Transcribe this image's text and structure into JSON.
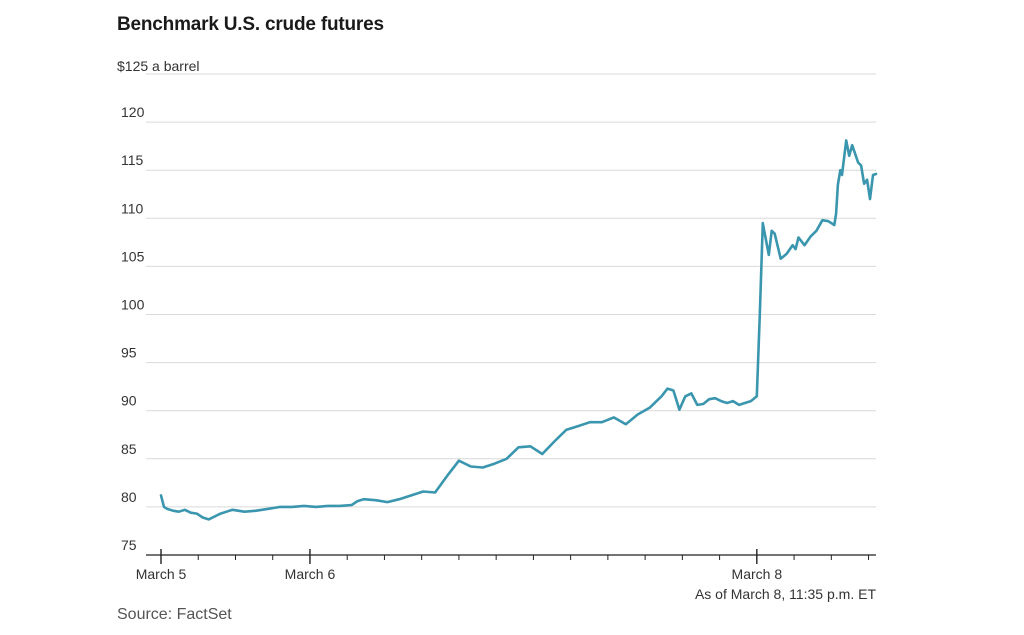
{
  "chart_data": {
    "type": "line",
    "title": "Benchmark U.S. crude futures",
    "ylabel_unit": "$125 a barrel",
    "y_ticks": [
      "75",
      "80",
      "85",
      "90",
      "95",
      "100",
      "105",
      "110",
      "115",
      "120"
    ],
    "ylim": [
      75,
      125
    ],
    "x_tick_labels": [
      "March 5",
      "March 6",
      "March 8"
    ],
    "note": "As of March 8, 11:35 p.m. ET",
    "source": "Source: FactSet",
    "line_color": "#3a96ae",
    "series": [
      {
        "name": "Benchmark U.S. crude futures",
        "t": [
          0,
          0.5,
          1,
          2,
          3,
          4,
          5,
          6,
          7,
          8,
          9,
          10,
          11,
          12,
          14,
          16,
          18,
          19,
          20,
          22,
          24,
          26,
          28,
          30,
          32,
          33,
          34,
          36,
          38,
          40,
          42,
          44,
          46,
          48,
          50,
          52,
          54,
          56,
          58,
          60,
          62,
          64,
          66,
          68,
          70,
          72,
          74,
          76,
          78,
          80,
          82,
          84,
          85,
          86,
          87,
          88,
          89,
          90,
          91,
          92,
          93,
          94,
          95,
          96,
          97,
          98,
          99,
          100,
          100.5,
          101,
          101.3,
          102,
          102.5,
          103,
          104,
          105,
          106,
          106.5,
          107,
          108,
          109,
          110,
          111,
          112,
          113,
          113.3,
          113.6,
          114,
          114.3,
          115,
          115.5,
          116,
          117,
          117.5,
          118,
          118.5,
          119,
          119.5,
          120
        ],
        "values": [
          81.2,
          80.0,
          79.8,
          79.6,
          79.5,
          79.7,
          79.4,
          79.3,
          78.9,
          78.7,
          79.0,
          79.3,
          79.5,
          79.7,
          79.5,
          79.6,
          79.8,
          79.9,
          80.0,
          80.0,
          80.1,
          80.0,
          80.1,
          80.1,
          80.2,
          80.6,
          80.8,
          80.7,
          80.5,
          80.8,
          81.2,
          81.6,
          81.5,
          83.2,
          84.8,
          84.2,
          84.1,
          84.5,
          85.0,
          86.2,
          86.3,
          85.5,
          86.8,
          88.0,
          88.4,
          88.8,
          88.8,
          89.3,
          88.6,
          89.6,
          90.3,
          91.5,
          92.3,
          92.1,
          90.1,
          91.5,
          91.8,
          90.6,
          90.7,
          91.2,
          91.3,
          91.0,
          90.8,
          91.0,
          90.6,
          90.8,
          91.0,
          91.5,
          100.0,
          109.5,
          108.5,
          106.2,
          108.7,
          108.4,
          105.8,
          106.3,
          107.2,
          106.8,
          108.0,
          107.2,
          108.1,
          108.7,
          109.8,
          109.7,
          109.3,
          110.5,
          113.5,
          115.0,
          114.5,
          118.1,
          116.5,
          117.6,
          115.8,
          115.5,
          113.6,
          114.0,
          112.0,
          114.5,
          114.6
        ]
      }
    ]
  }
}
